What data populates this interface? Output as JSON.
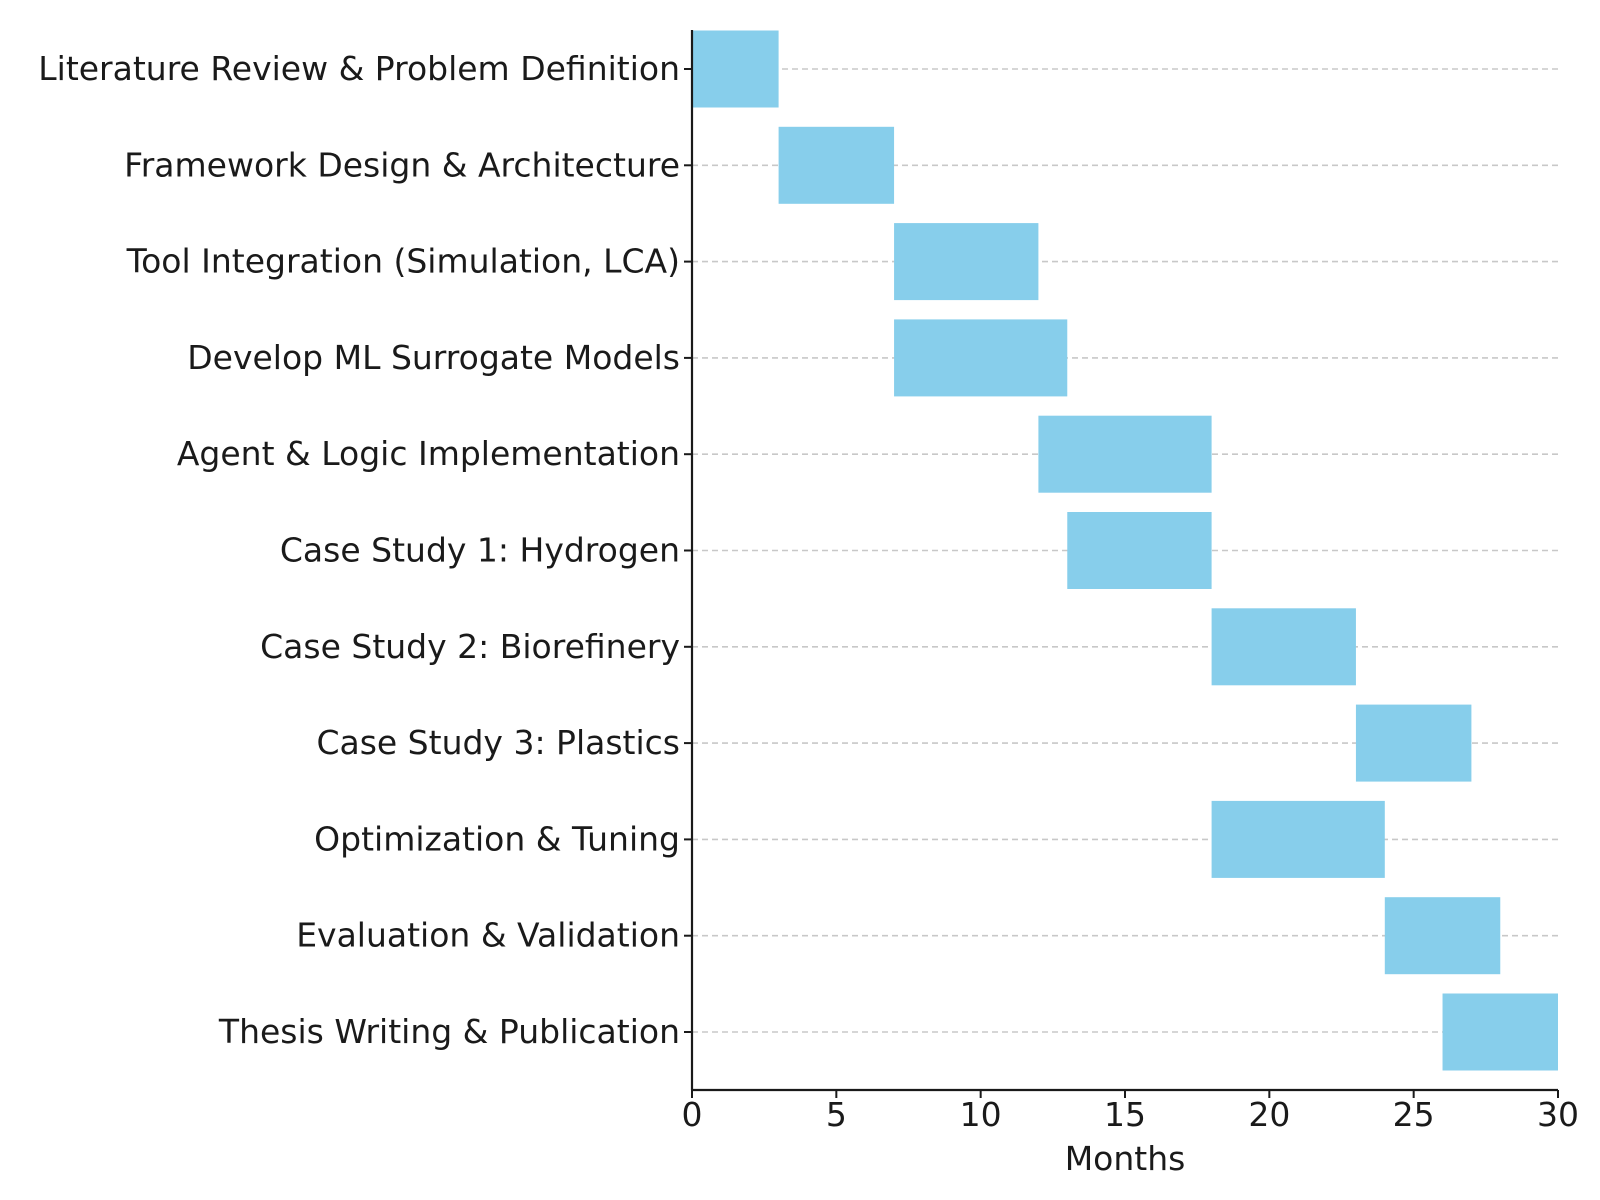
{
  "chart_data": {
    "type": "bar",
    "orientation": "horizontal",
    "subtype": "gantt",
    "title": "",
    "xlabel": "Months",
    "ylabel": "",
    "xlim": [
      0,
      30
    ],
    "xticks": [
      0,
      5,
      10,
      15,
      20,
      25,
      30
    ],
    "grid": "horizontal dashed",
    "legend": "none",
    "bar_color": "#87CEEB",
    "tasks": [
      {
        "label": "Literature Review & Problem Definition",
        "start": 0,
        "duration": 3
      },
      {
        "label": "Framework Design & Architecture",
        "start": 3,
        "duration": 4
      },
      {
        "label": "Tool Integration (Simulation, LCA)",
        "start": 7,
        "duration": 5
      },
      {
        "label": "Develop ML Surrogate Models",
        "start": 7,
        "duration": 6
      },
      {
        "label": "Agent & Logic Implementation",
        "start": 12,
        "duration": 6
      },
      {
        "label": "Case Study 1: Hydrogen",
        "start": 13,
        "duration": 5
      },
      {
        "label": "Case Study 2: Biorefinery",
        "start": 18,
        "duration": 5
      },
      {
        "label": "Case Study 3: Plastics",
        "start": 23,
        "duration": 4
      },
      {
        "label": "Optimization & Tuning",
        "start": 18,
        "duration": 6
      },
      {
        "label": "Evaluation & Validation",
        "start": 24,
        "duration": 4
      },
      {
        "label": "Thesis Writing & Publication",
        "start": 26,
        "duration": 4
      }
    ]
  }
}
